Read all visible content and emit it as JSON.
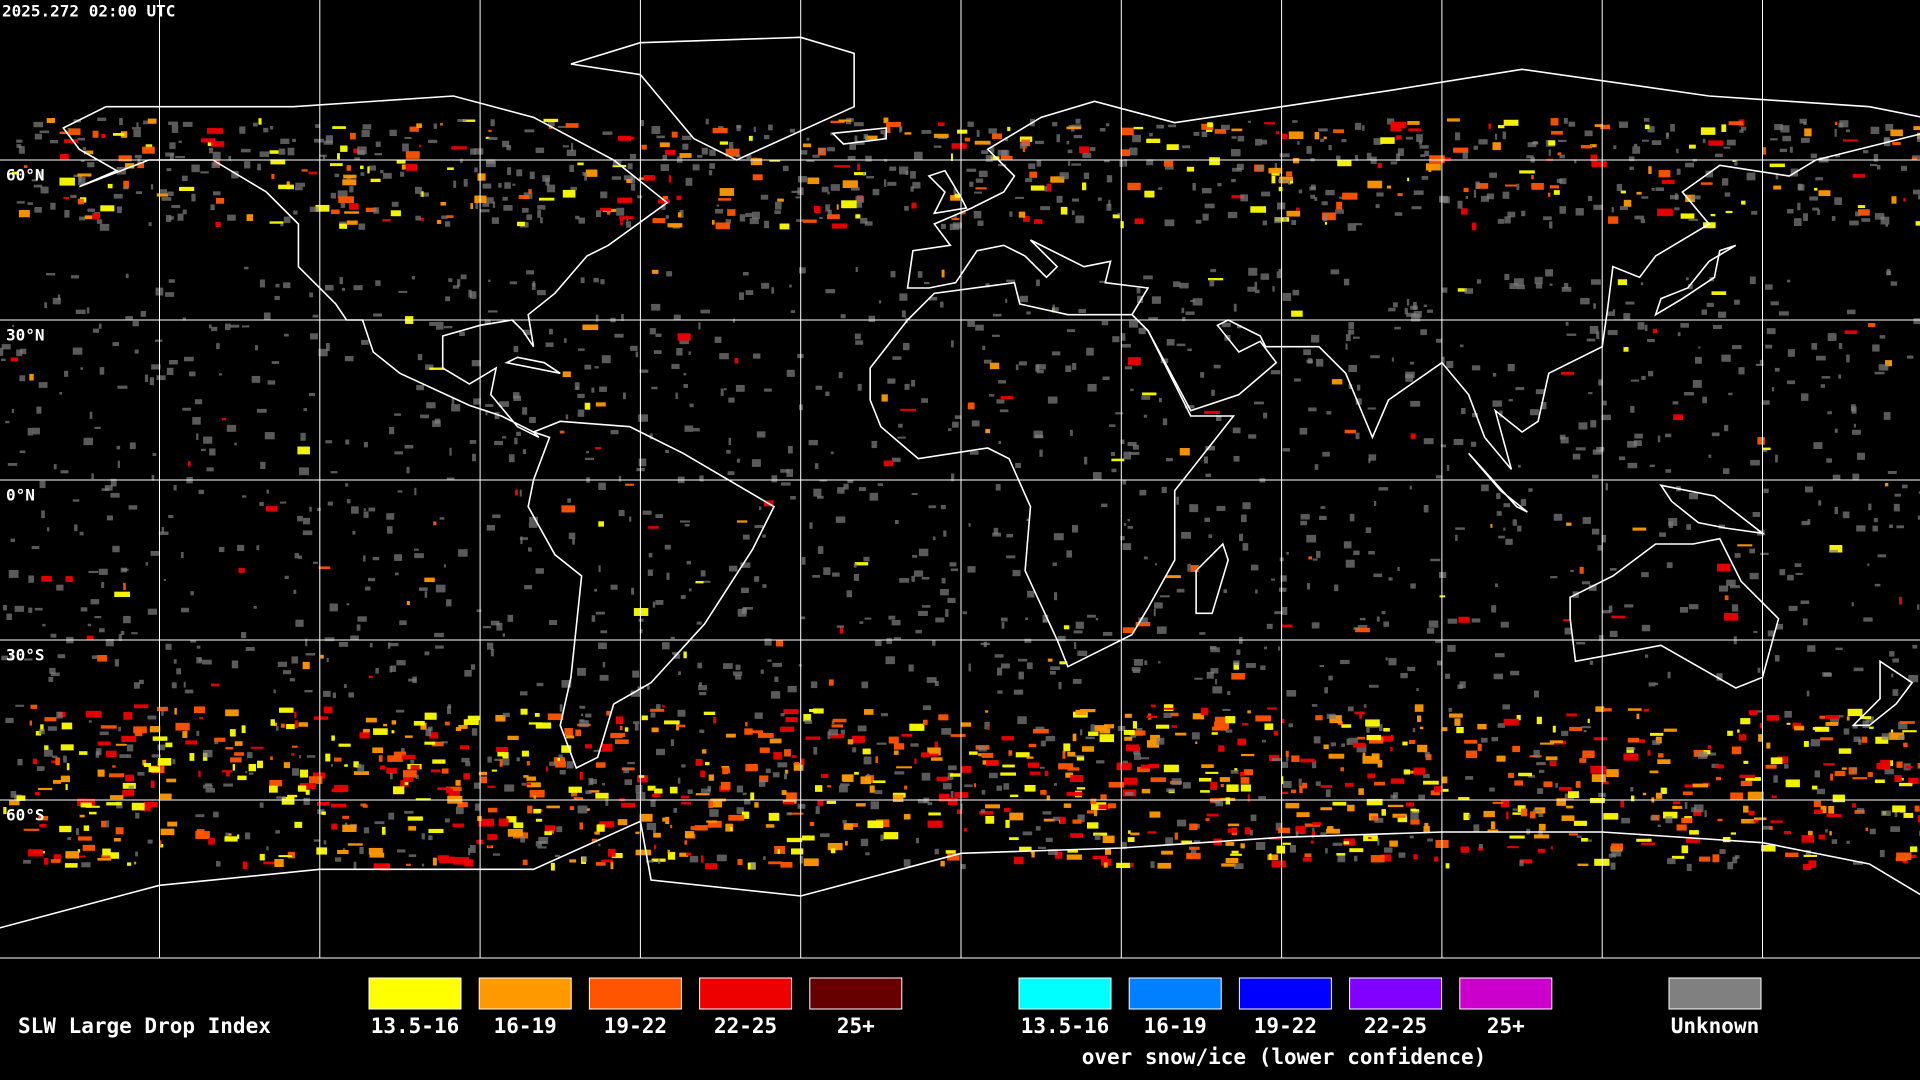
{
  "timestamp": "2025.272 02:00 UTC",
  "latitude_labels": [
    "60°N",
    "30°N",
    "0°N",
    "30°S",
    "60°S"
  ],
  "legend": {
    "title": "SLW Large Drop Index",
    "groups": [
      {
        "items": [
          {
            "label": "13.5-16",
            "color": "#ffff00"
          },
          {
            "label": "16-19",
            "color": "#ff9900"
          },
          {
            "label": "19-22",
            "color": "#ff5500"
          },
          {
            "label": "22-25",
            "color": "#ee0000"
          },
          {
            "label": "25+",
            "color": "#660000"
          }
        ]
      },
      {
        "items": [
          {
            "label": "13.5-16",
            "color": "#00ffff"
          },
          {
            "label": "16-19",
            "color": "#0080ff"
          },
          {
            "label": "19-22",
            "color": "#0000ff"
          },
          {
            "label": "22-25",
            "color": "#8000ff"
          },
          {
            "label": "25+",
            "color": "#cc00cc"
          }
        ],
        "note": "over snow/ice (lower confidence)"
      }
    ],
    "unknown": {
      "label": "Unknown",
      "color": "#808080"
    }
  }
}
